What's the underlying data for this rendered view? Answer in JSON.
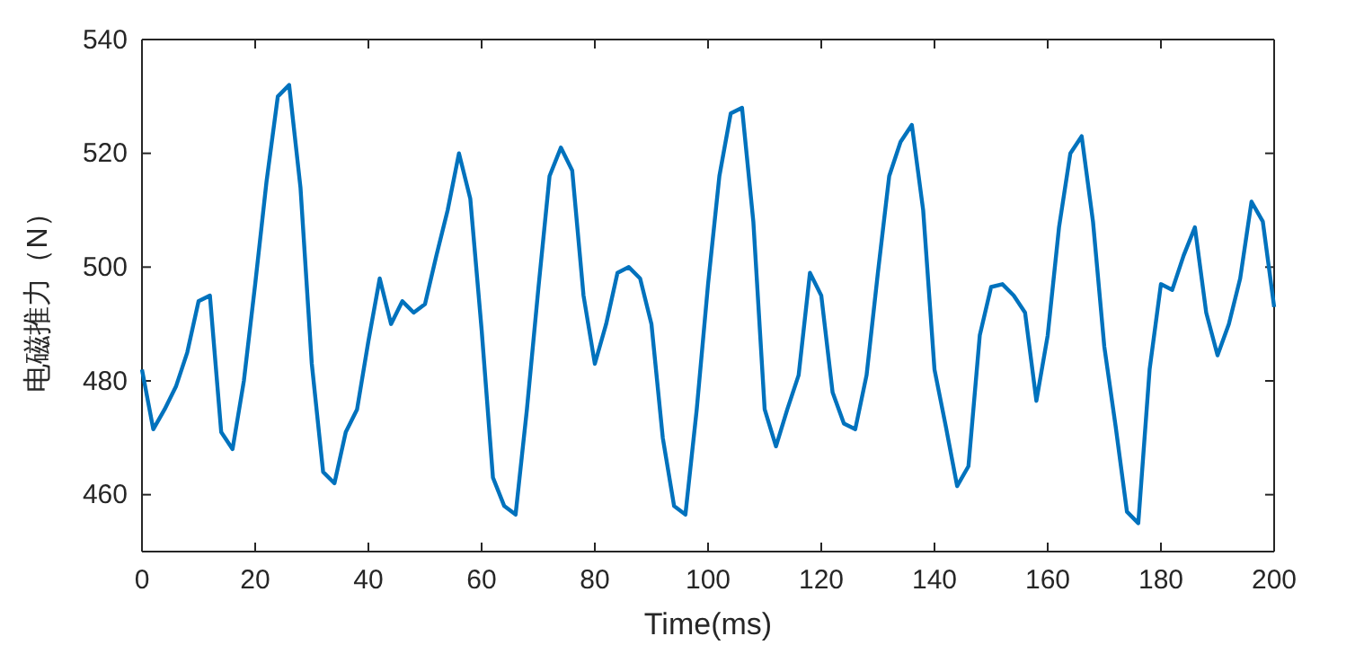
{
  "chart_data": {
    "type": "line",
    "xlabel": "Time(ms)",
    "ylabel": "电磁推力（N）",
    "x": [
      0,
      2,
      4,
      6,
      8,
      10,
      12,
      14,
      16,
      18,
      20,
      22,
      24,
      26,
      28,
      30,
      32,
      34,
      36,
      38,
      40,
      42,
      44,
      46,
      48,
      50,
      52,
      54,
      56,
      58,
      60,
      62,
      64,
      66,
      68,
      70,
      72,
      74,
      76,
      78,
      80,
      82,
      84,
      86,
      88,
      90,
      92,
      94,
      96,
      98,
      100,
      102,
      104,
      106,
      108,
      110,
      112,
      114,
      116,
      118,
      120,
      122,
      124,
      126,
      128,
      130,
      132,
      134,
      136,
      138,
      140,
      142,
      144,
      146,
      148,
      150,
      152,
      154,
      156,
      158,
      160,
      162,
      164,
      166,
      168,
      170,
      172,
      174,
      176,
      178,
      180,
      182,
      184,
      186,
      188,
      190,
      192,
      194,
      196,
      198,
      200
    ],
    "series": [
      {
        "color": "#0072bd",
        "values": [
          482,
          471.5,
          475,
          479,
          485,
          494,
          495,
          471,
          468,
          480,
          497,
          515,
          530,
          532,
          514,
          483,
          464,
          462,
          471,
          475,
          487,
          498,
          490,
          494,
          492,
          493.5,
          502,
          510,
          520,
          512,
          489,
          463,
          458,
          456.5,
          475,
          496,
          516,
          521,
          517,
          495,
          483,
          490,
          499,
          500,
          498,
          490,
          470,
          458,
          456.5,
          475,
          497,
          516,
          527,
          528,
          508,
          475,
          468.5,
          475,
          481,
          499,
          495,
          478,
          472.5,
          471.5,
          481,
          499,
          516,
          522,
          525,
          510,
          482,
          472,
          461.5,
          465,
          488,
          496.5,
          497,
          495,
          492,
          476.5,
          488,
          507,
          520,
          523,
          508,
          486,
          472,
          457,
          455,
          482,
          497,
          496,
          502,
          507,
          492,
          484.5,
          490,
          498,
          511.5,
          508,
          493
        ]
      }
    ],
    "xlim": [
      0,
      200
    ],
    "xticks": [
      0,
      20,
      40,
      60,
      80,
      100,
      120,
      140,
      160,
      180,
      200
    ],
    "ylim": [
      450,
      540
    ],
    "yticks": [
      460,
      480,
      500,
      520,
      540
    ],
    "grid": false,
    "line_style": "solid",
    "marker": "none"
  }
}
